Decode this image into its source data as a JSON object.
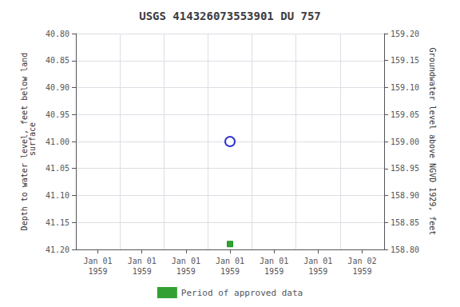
{
  "chart_data": {
    "type": "scatter",
    "title": "USGS 414326073553901 DU 757",
    "y_label": "Depth to water level, feet below land\n surface",
    "y2_label": "Groundwater level above NGVD 1929, feet",
    "categories": [
      "Jan 01\n1959",
      "Jan 01\n1959",
      "Jan 01\n1959",
      "Jan 01\n1959",
      "Jan 01\n1959",
      "Jan 01\n1959",
      "Jan 02\n1959"
    ],
    "series": [
      {
        "color": "#0000cc",
        "marker": "circle_open",
        "values": [
          null,
          null,
          null,
          41.0,
          null,
          null,
          null
        ]
      },
      {
        "name": "Period of approved data",
        "color": "#008800",
        "marker": "square",
        "values": [
          null,
          null,
          null,
          41.19,
          null,
          null,
          null
        ]
      }
    ],
    "ylim": [
      41.2,
      40.8
    ],
    "yticks": [
      {
        "value": 40.8,
        "label": "40.80"
      },
      {
        "value": 40.85,
        "label": "40.85"
      },
      {
        "value": 40.9,
        "label": "40.90"
      },
      {
        "value": 40.95,
        "label": "40.95"
      },
      {
        "value": 41.0,
        "label": "41.00"
      },
      {
        "value": 41.05,
        "label": "41.05"
      },
      {
        "value": 41.1,
        "label": "41.10"
      },
      {
        "value": 41.15,
        "label": "41.15"
      },
      {
        "value": 41.2,
        "label": "41.20"
      }
    ],
    "y2lim": [
      158.8,
      159.2
    ],
    "y2ticks": [
      {
        "value": 158.8,
        "label": "158.80"
      },
      {
        "value": 158.85,
        "label": "158.85"
      },
      {
        "value": 158.9,
        "label": "158.90"
      },
      {
        "value": 158.95,
        "label": "158.95"
      },
      {
        "value": 159.0,
        "label": "159.00"
      },
      {
        "value": 159.05,
        "label": "159.05"
      },
      {
        "value": 159.1,
        "label": "159.10"
      },
      {
        "value": 159.15,
        "label": "159.15"
      },
      {
        "value": 159.2,
        "label": "159.20"
      }
    ],
    "grid": true,
    "legend": "bottom"
  }
}
